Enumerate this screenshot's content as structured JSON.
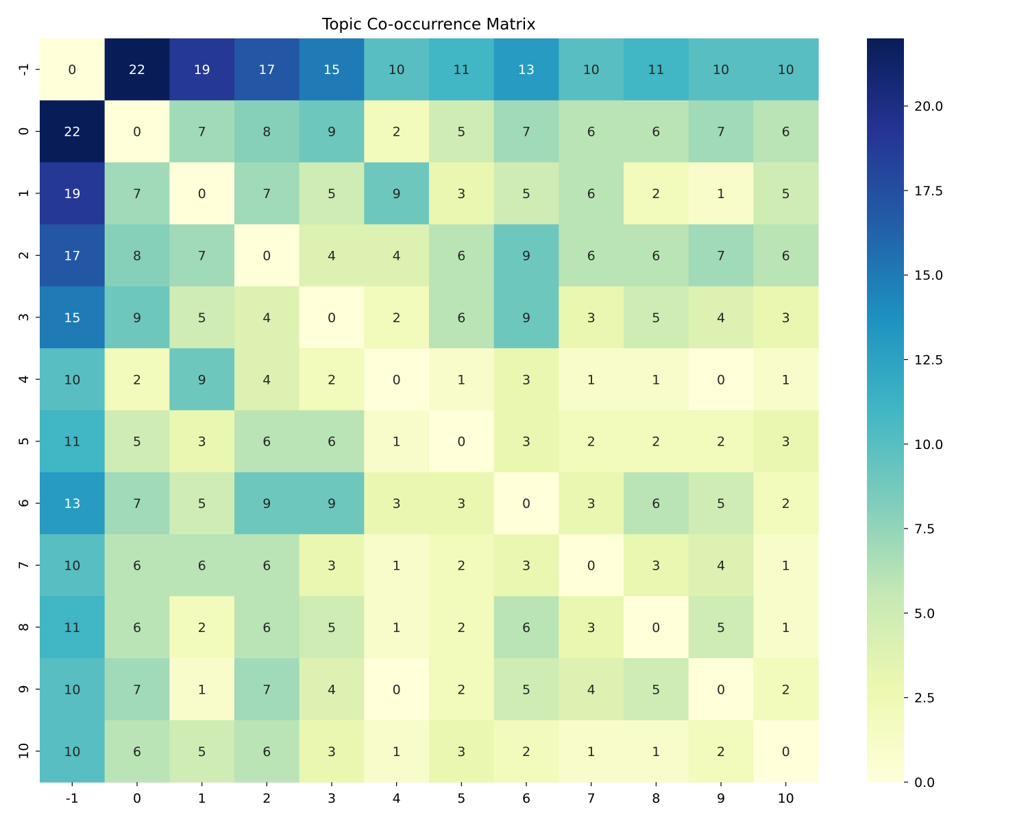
{
  "chart_data": {
    "type": "heatmap",
    "title": "Topic Co-occurrence Matrix",
    "xlabel": "",
    "ylabel": "",
    "x_categories": [
      "-1",
      "0",
      "1",
      "2",
      "3",
      "4",
      "5",
      "6",
      "7",
      "8",
      "9",
      "10"
    ],
    "y_categories": [
      "-1",
      "0",
      "1",
      "2",
      "3",
      "4",
      "5",
      "6",
      "7",
      "8",
      "9",
      "10"
    ],
    "values": [
      [
        0,
        22,
        19,
        17,
        15,
        10,
        11,
        13,
        10,
        11,
        10,
        10
      ],
      [
        22,
        0,
        7,
        8,
        9,
        2,
        5,
        7,
        6,
        6,
        7,
        6
      ],
      [
        19,
        7,
        0,
        7,
        5,
        9,
        3,
        5,
        6,
        2,
        1,
        5
      ],
      [
        17,
        8,
        7,
        0,
        4,
        4,
        6,
        9,
        6,
        6,
        7,
        6
      ],
      [
        15,
        9,
        5,
        4,
        0,
        2,
        6,
        9,
        3,
        5,
        4,
        3
      ],
      [
        10,
        2,
        9,
        4,
        2,
        0,
        1,
        3,
        1,
        1,
        0,
        1
      ],
      [
        11,
        5,
        3,
        6,
        6,
        1,
        0,
        3,
        2,
        2,
        2,
        3
      ],
      [
        13,
        7,
        5,
        9,
        9,
        3,
        3,
        0,
        3,
        6,
        5,
        2
      ],
      [
        10,
        6,
        6,
        6,
        3,
        1,
        2,
        3,
        0,
        3,
        4,
        1
      ],
      [
        11,
        6,
        2,
        6,
        5,
        1,
        2,
        6,
        3,
        0,
        5,
        1
      ],
      [
        10,
        7,
        1,
        7,
        4,
        0,
        2,
        5,
        4,
        5,
        0,
        2
      ],
      [
        10,
        6,
        5,
        6,
        3,
        1,
        3,
        2,
        1,
        1,
        2,
        0
      ]
    ],
    "annotated": true,
    "colormap": "YlGnBu",
    "colormap_stops": [
      "#ffffd9",
      "#edf8b1",
      "#c7e9b4",
      "#7fcdbb",
      "#41b6c4",
      "#1d91c0",
      "#225ea8",
      "#253494",
      "#081d58"
    ],
    "vmin": 0,
    "vmax": 22,
    "colorbar": {
      "ticks": [
        0,
        2.5,
        5,
        7.5,
        10,
        12.5,
        15,
        17.5,
        20
      ],
      "tick_labels": [
        "0.0",
        "2.5",
        "5.0",
        "7.5",
        "10.0",
        "12.5",
        "15.0",
        "17.5",
        "20.0"
      ]
    },
    "text_colors": {
      "light": "#ffffff",
      "dark": "#262626"
    },
    "grid": false,
    "legend": "none"
  }
}
